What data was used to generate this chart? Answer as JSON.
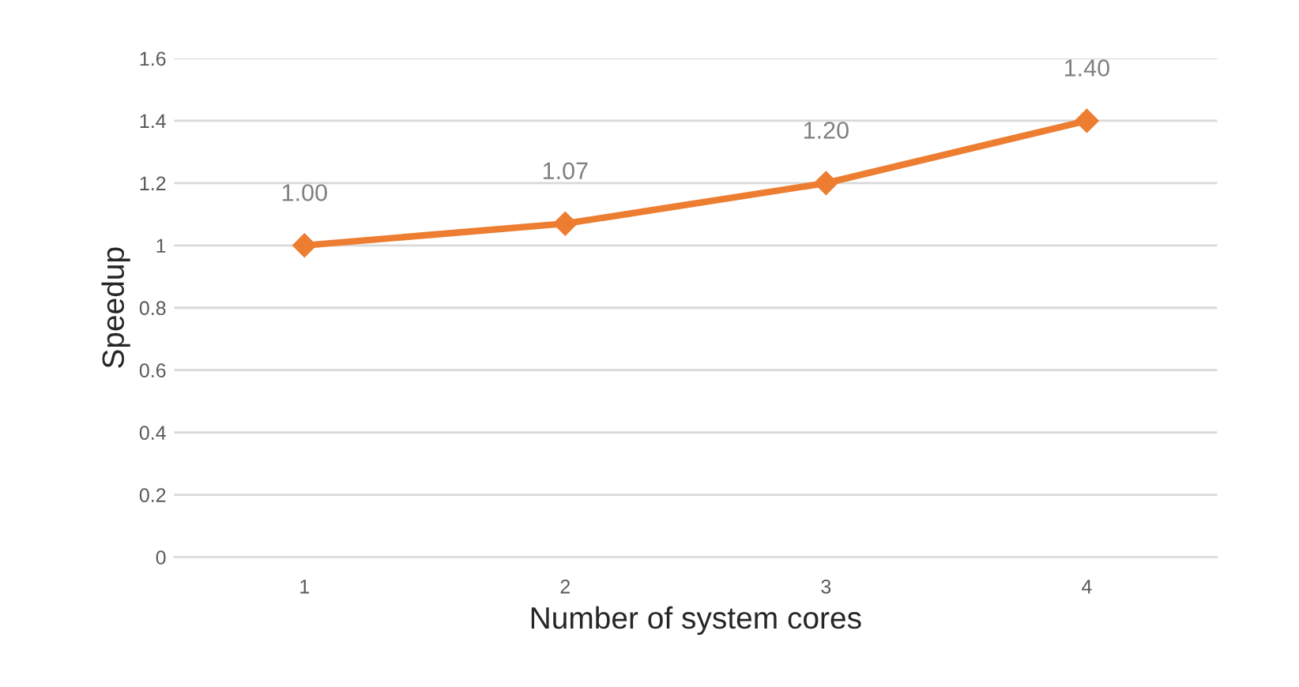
{
  "chart_data": {
    "type": "line",
    "xlabel": "Number of system cores",
    "ylabel": "Speedup",
    "categories": [
      "1",
      "2",
      "3",
      "4"
    ],
    "series": [
      {
        "color": "#ed7d31",
        "values": [
          1.0,
          1.07,
          1.2,
          1.4
        ],
        "value_labels": [
          "1.00",
          "1.07",
          "1.20",
          "1.40"
        ]
      }
    ],
    "ylim": [
      0,
      1.6
    ],
    "yticks": [
      0,
      0.2,
      0.4,
      0.6,
      0.8,
      1,
      1.2,
      1.4,
      1.6
    ],
    "grid": "y",
    "marker": "diamond",
    "line_style": "solid"
  }
}
